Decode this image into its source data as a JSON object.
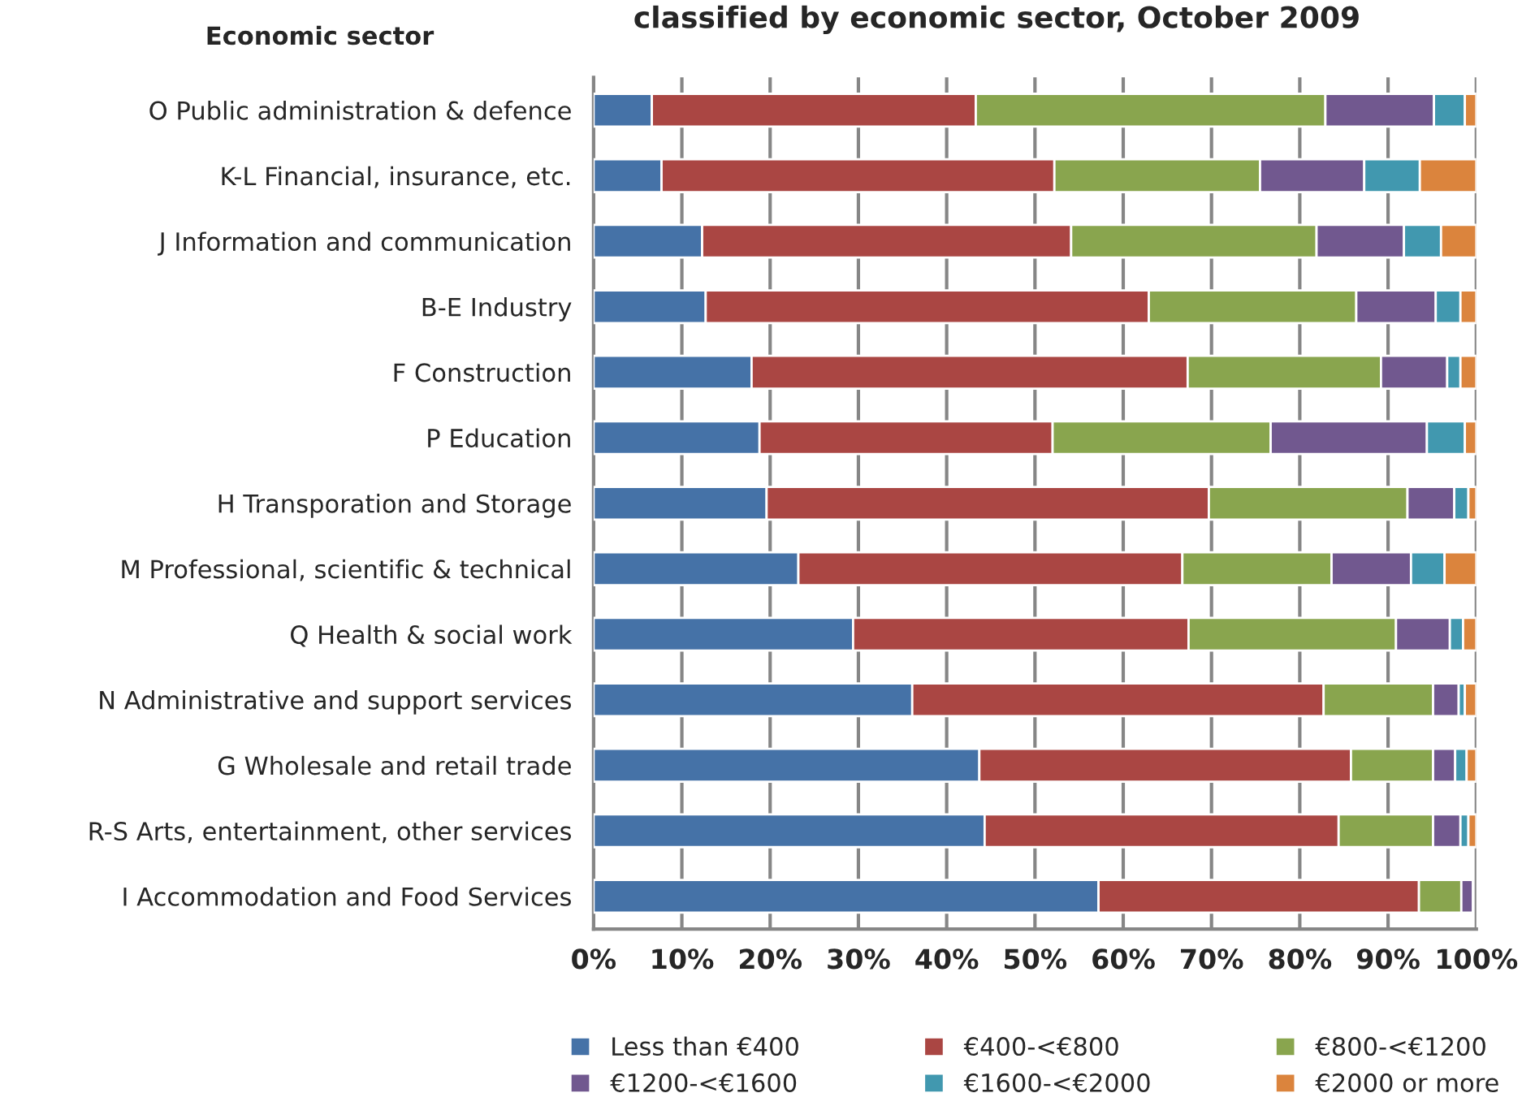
{
  "chart_data": {
    "type": "bar",
    "orientation": "horizontal",
    "stacked": true,
    "title": "classified by economic sector, October 2009",
    "ylabel": "Economic sector",
    "categories": [
      "O Public administration & defence",
      "K-L Financial, insurance, etc.",
      "J Information and communication",
      "B-E Industry",
      "F Construction",
      "P Education",
      "H Transporation and Storage",
      "M Professional, scientific & technical",
      "Q Health & social work",
      "N Administrative and support services",
      "G Wholesale and retail trade",
      "R-S Arts, entertainment, other services",
      "I Accommodation and Food Services"
    ],
    "series": [
      {
        "name": "Less than €400",
        "color": "#4572a7",
        "values": [
          6.6,
          7.7,
          12.3,
          12.7,
          17.9,
          18.8,
          19.6,
          23.2,
          29.4,
          36.1,
          43.7,
          44.3,
          57.2
        ]
      },
      {
        "name": "€400-<€800",
        "color": "#aa4643",
        "values": [
          36.7,
          44.5,
          41.8,
          50.2,
          49.4,
          33.2,
          50.1,
          43.5,
          38.0,
          46.6,
          42.1,
          40.1,
          36.3
        ]
      },
      {
        "name": "€800-<€1200",
        "color": "#89a54e",
        "values": [
          39.6,
          23.3,
          27.8,
          23.5,
          21.9,
          24.7,
          22.5,
          16.9,
          23.5,
          12.4,
          9.3,
          10.7,
          4.8
        ]
      },
      {
        "name": "€1200-<€1600",
        "color": "#71588f",
        "values": [
          12.3,
          11.8,
          9.9,
          9.0,
          7.5,
          17.7,
          5.3,
          9.0,
          6.1,
          2.9,
          2.5,
          3.1,
          1.3
        ]
      },
      {
        "name": "€1600-<€2000",
        "color": "#4198af",
        "values": [
          3.5,
          6.3,
          4.2,
          2.8,
          1.5,
          4.3,
          1.6,
          3.8,
          1.5,
          0.7,
          1.3,
          0.9,
          null
        ]
      },
      {
        "name": "€2000 or more",
        "color": "#db843d",
        "values": [
          1.3,
          6.4,
          4.0,
          1.8,
          1.8,
          1.3,
          0.9,
          3.6,
          1.5,
          1.3,
          1.1,
          0.9,
          null
        ]
      }
    ],
    "xlim": [
      0,
      100
    ],
    "xticks": [
      {
        "value": 0,
        "label": "0%"
      },
      {
        "value": 10,
        "label": "10%"
      },
      {
        "value": 20,
        "label": "20%"
      },
      {
        "value": 30,
        "label": "30%"
      },
      {
        "value": 40,
        "label": "40%"
      },
      {
        "value": 50,
        "label": "50%"
      },
      {
        "value": 60,
        "label": "60%"
      },
      {
        "value": 70,
        "label": "70%"
      },
      {
        "value": 80,
        "label": "80%"
      },
      {
        "value": 90,
        "label": "90%"
      },
      {
        "value": 100,
        "label": "100%"
      }
    ],
    "grid": "x",
    "legend": "bottom"
  }
}
